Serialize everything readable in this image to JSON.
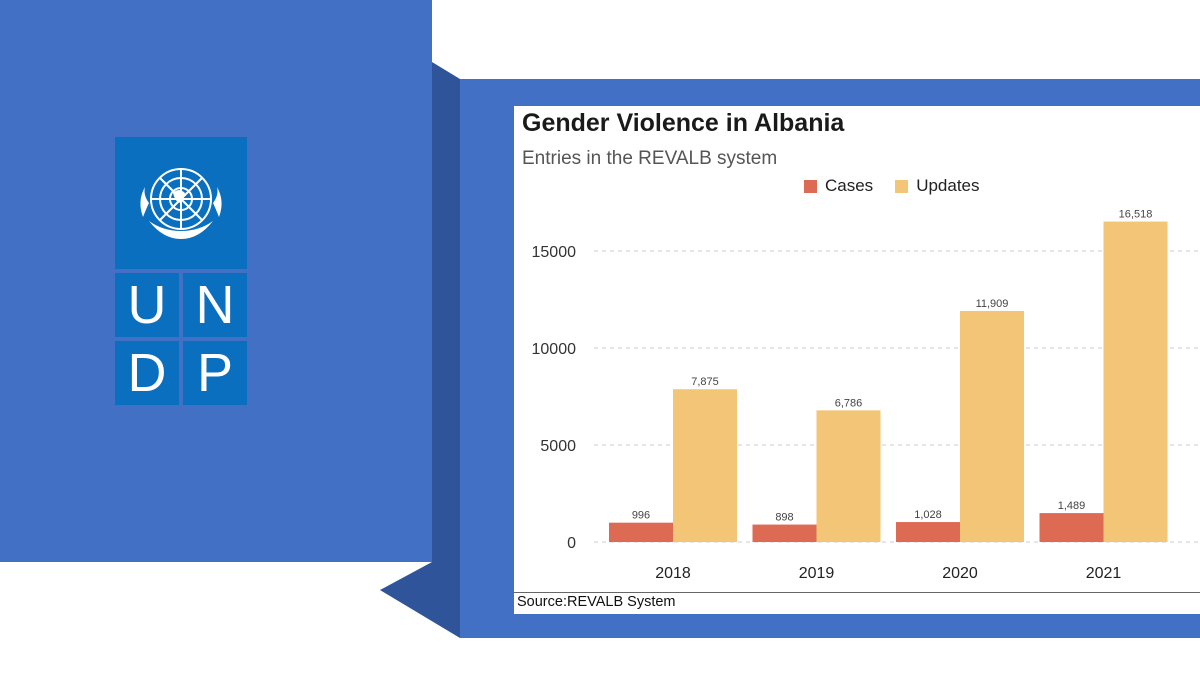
{
  "logo": {
    "letters": [
      "U",
      "N",
      "D",
      "P"
    ],
    "color": "#0b6fc0"
  },
  "colors": {
    "panel": "#4270c4",
    "panel_shadow": "#2f549a",
    "cases": "#dd6a53",
    "updates": "#f3c577",
    "grid": "#cccccc"
  },
  "chart_data": {
    "type": "bar",
    "title": "Gender Violence in Albania",
    "subtitle": "Entries in the REVALB system",
    "categories": [
      "2018",
      "2019",
      "2020",
      "2021"
    ],
    "series": [
      {
        "name": "Cases",
        "values": [
          996,
          898,
          1028,
          1489
        ],
        "labels": [
          "996",
          "898",
          "1,028",
          "1,489"
        ],
        "color": "#dd6a53"
      },
      {
        "name": "Updates",
        "values": [
          7875,
          6786,
          11909,
          16518
        ],
        "labels": [
          "7,875",
          "6,786",
          "11,909",
          "16,518"
        ],
        "color": "#f3c577"
      }
    ],
    "yticks": [
      0,
      5000,
      10000,
      15000
    ],
    "ytick_labels": [
      "0",
      "5000",
      "10000",
      "15000"
    ],
    "ylim": [
      0,
      17000
    ],
    "grid": true,
    "legend_position": "top",
    "source": "Source:REVALB System"
  }
}
